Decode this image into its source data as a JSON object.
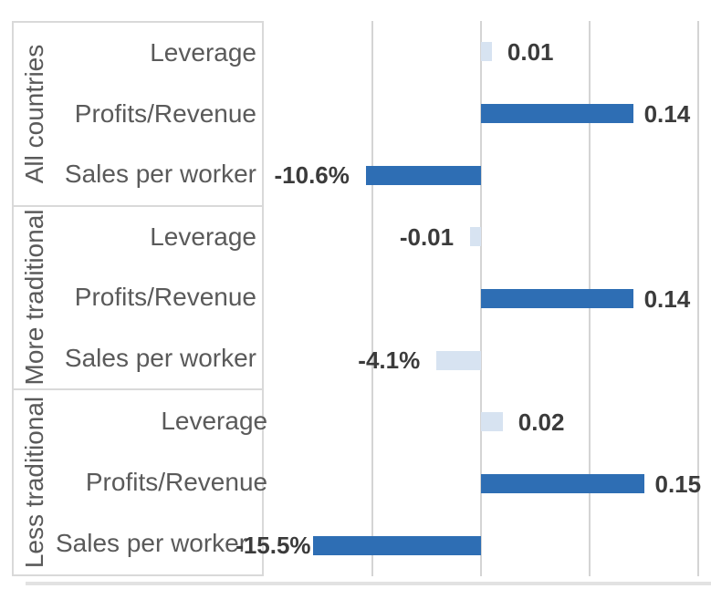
{
  "chart_data": {
    "type": "bar",
    "orientation": "horizontal",
    "title": "",
    "xlabel": "",
    "ylabel": "",
    "xlim": [
      -0.2,
      0.212
    ],
    "gridline_values": [
      -0.1,
      0,
      0.1,
      0.2
    ],
    "grid": true,
    "legend": false,
    "groups": [
      {
        "label": "All countries",
        "rows": [
          {
            "category": "Leverage",
            "value": 0.01,
            "label": "0.01",
            "style": "light"
          },
          {
            "category": "Profits/Revenue",
            "value": 0.14,
            "label": "0.14",
            "style": "dark"
          },
          {
            "category": "Sales per worker",
            "value": -0.106,
            "label": "-10.6%",
            "style": "dark"
          }
        ]
      },
      {
        "label": "More traditional",
        "rows": [
          {
            "category": "Leverage",
            "value": -0.01,
            "label": "-0.01",
            "style": "light"
          },
          {
            "category": "Profits/Revenue",
            "value": 0.14,
            "label": "0.14",
            "style": "dark"
          },
          {
            "category": "Sales per worker",
            "value": -0.041,
            "label": "-4.1%",
            "style": "light"
          }
        ]
      },
      {
        "label": "Less traditional",
        "rows": [
          {
            "category": "Leverage",
            "value": 0.02,
            "label": "0.02",
            "style": "light"
          },
          {
            "category": "Profits/Revenue",
            "value": 0.15,
            "label": "0.15",
            "style": "dark"
          },
          {
            "category": "Sales per worker",
            "value": -0.155,
            "label": "-15.5%",
            "style": "dark"
          }
        ]
      }
    ],
    "colors": {
      "bar_dark": "#2E6EB4",
      "bar_light": "#D7E3F1",
      "gridline": "#D4D4D4",
      "panel_border": "#D9D9D9",
      "bottom_line": "#E2E2E2",
      "category_text": "#5A5A5A",
      "value_text": "#3B3B3B",
      "background": "#FFFFFF"
    }
  }
}
